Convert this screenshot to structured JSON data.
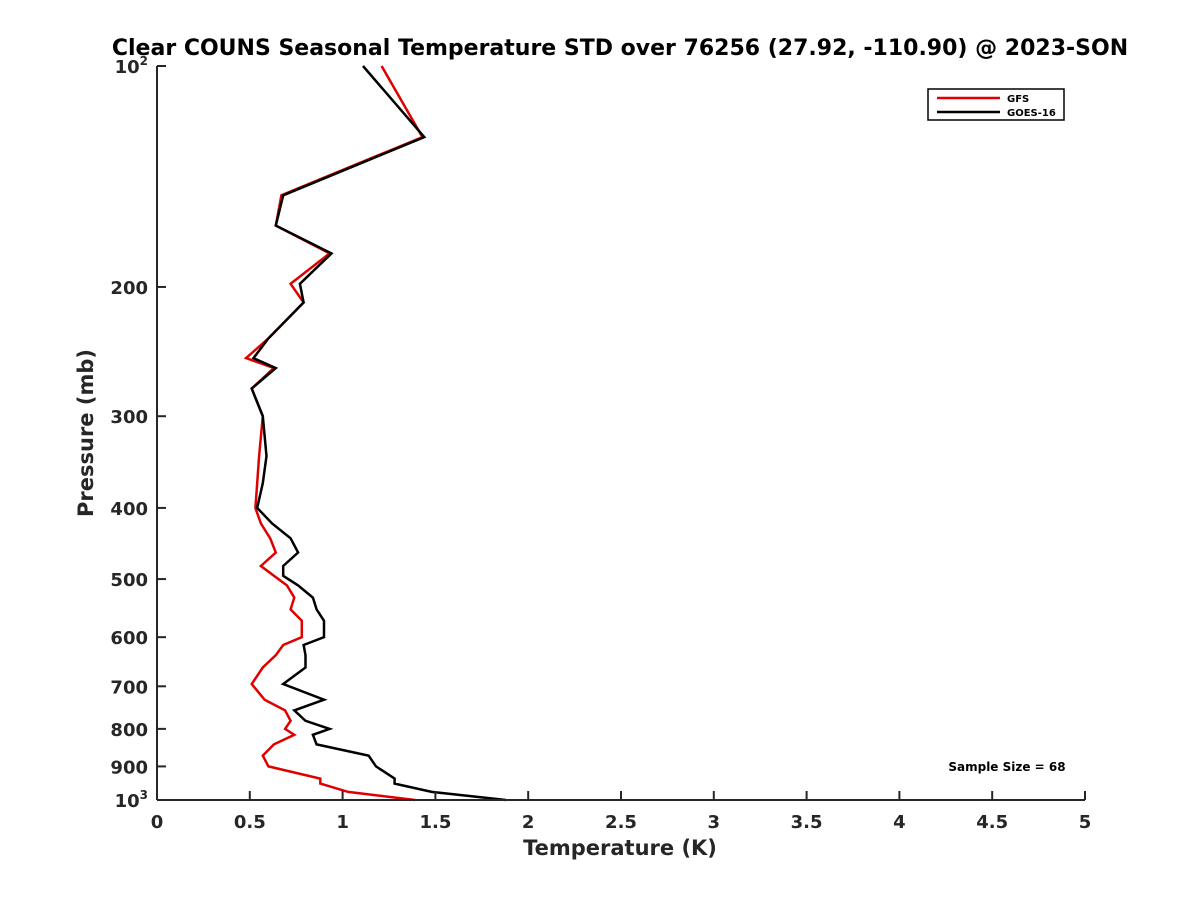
{
  "chart_data": {
    "type": "line",
    "title": "Clear COUNS Seasonal Temperature STD over 76256 (27.92, -110.90) @ 2023-SON",
    "xlabel": "Temperature (K)",
    "ylabel": "Pressure (mb)",
    "xlim": [
      0,
      5
    ],
    "ylim": [
      100,
      1000
    ],
    "yscale": "log",
    "yreversed": true,
    "x_ticks": [
      0,
      0.5,
      1,
      1.5,
      2,
      2.5,
      3,
      3.5,
      4,
      4.5,
      5
    ],
    "x_tick_labels": [
      "0",
      "0.5",
      "1",
      "1.5",
      "2",
      "2.5",
      "3",
      "3.5",
      "4",
      "4.5",
      "5"
    ],
    "y_ticks": [
      {
        "value": 100,
        "base": "10",
        "exp": "2"
      },
      {
        "value": 200,
        "label": "200"
      },
      {
        "value": 300,
        "label": "300"
      },
      {
        "value": 400,
        "label": "400"
      },
      {
        "value": 500,
        "label": "500"
      },
      {
        "value": 600,
        "label": "600"
      },
      {
        "value": 700,
        "label": "700"
      },
      {
        "value": 800,
        "label": "800"
      },
      {
        "value": 900,
        "label": "900"
      },
      {
        "value": 1000,
        "base": "10",
        "exp": "3"
      }
    ],
    "legend_position": "top-right",
    "annotation": "Sample Size = 68",
    "series": [
      {
        "name": "GFS",
        "color": "#e00000",
        "points": [
          [
            1.21,
            100
          ],
          [
            1.43,
            125
          ],
          [
            0.67,
            150
          ],
          [
            0.64,
            165
          ],
          [
            0.93,
            180
          ],
          [
            0.72,
            198
          ],
          [
            0.79,
            210
          ],
          [
            0.6,
            235
          ],
          [
            0.48,
            250
          ],
          [
            0.63,
            258
          ],
          [
            0.51,
            275
          ],
          [
            0.57,
            300
          ],
          [
            0.55,
            340
          ],
          [
            0.54,
            370
          ],
          [
            0.53,
            400
          ],
          [
            0.56,
            420
          ],
          [
            0.61,
            440
          ],
          [
            0.64,
            460
          ],
          [
            0.56,
            480
          ],
          [
            0.63,
            495
          ],
          [
            0.7,
            510
          ],
          [
            0.74,
            530
          ],
          [
            0.72,
            550
          ],
          [
            0.78,
            570
          ],
          [
            0.78,
            600
          ],
          [
            0.68,
            615
          ],
          [
            0.64,
            635
          ],
          [
            0.57,
            660
          ],
          [
            0.51,
            695
          ],
          [
            0.58,
            730
          ],
          [
            0.69,
            755
          ],
          [
            0.72,
            780
          ],
          [
            0.69,
            800
          ],
          [
            0.74,
            815
          ],
          [
            0.63,
            840
          ],
          [
            0.57,
            870
          ],
          [
            0.6,
            900
          ],
          [
            0.88,
            935
          ],
          [
            0.88,
            950
          ],
          [
            1.03,
            975
          ],
          [
            1.39,
            1000
          ]
        ]
      },
      {
        "name": "GOES-16",
        "color": "#000000",
        "points": [
          [
            1.11,
            100
          ],
          [
            1.44,
            125
          ],
          [
            0.68,
            150
          ],
          [
            0.64,
            165
          ],
          [
            0.94,
            180
          ],
          [
            0.77,
            198
          ],
          [
            0.79,
            210
          ],
          [
            0.6,
            235
          ],
          [
            0.52,
            250
          ],
          [
            0.64,
            258
          ],
          [
            0.51,
            275
          ],
          [
            0.57,
            300
          ],
          [
            0.59,
            340
          ],
          [
            0.57,
            370
          ],
          [
            0.54,
            400
          ],
          [
            0.62,
            420
          ],
          [
            0.72,
            440
          ],
          [
            0.76,
            460
          ],
          [
            0.68,
            480
          ],
          [
            0.68,
            495
          ],
          [
            0.76,
            510
          ],
          [
            0.84,
            530
          ],
          [
            0.86,
            550
          ],
          [
            0.9,
            570
          ],
          [
            0.9,
            600
          ],
          [
            0.79,
            615
          ],
          [
            0.8,
            635
          ],
          [
            0.8,
            660
          ],
          [
            0.68,
            695
          ],
          [
            0.9,
            730
          ],
          [
            0.74,
            755
          ],
          [
            0.8,
            780
          ],
          [
            0.93,
            800
          ],
          [
            0.84,
            815
          ],
          [
            0.86,
            840
          ],
          [
            1.14,
            870
          ],
          [
            1.18,
            900
          ],
          [
            1.28,
            935
          ],
          [
            1.28,
            950
          ],
          [
            1.48,
            975
          ],
          [
            1.88,
            1000
          ]
        ]
      }
    ]
  }
}
